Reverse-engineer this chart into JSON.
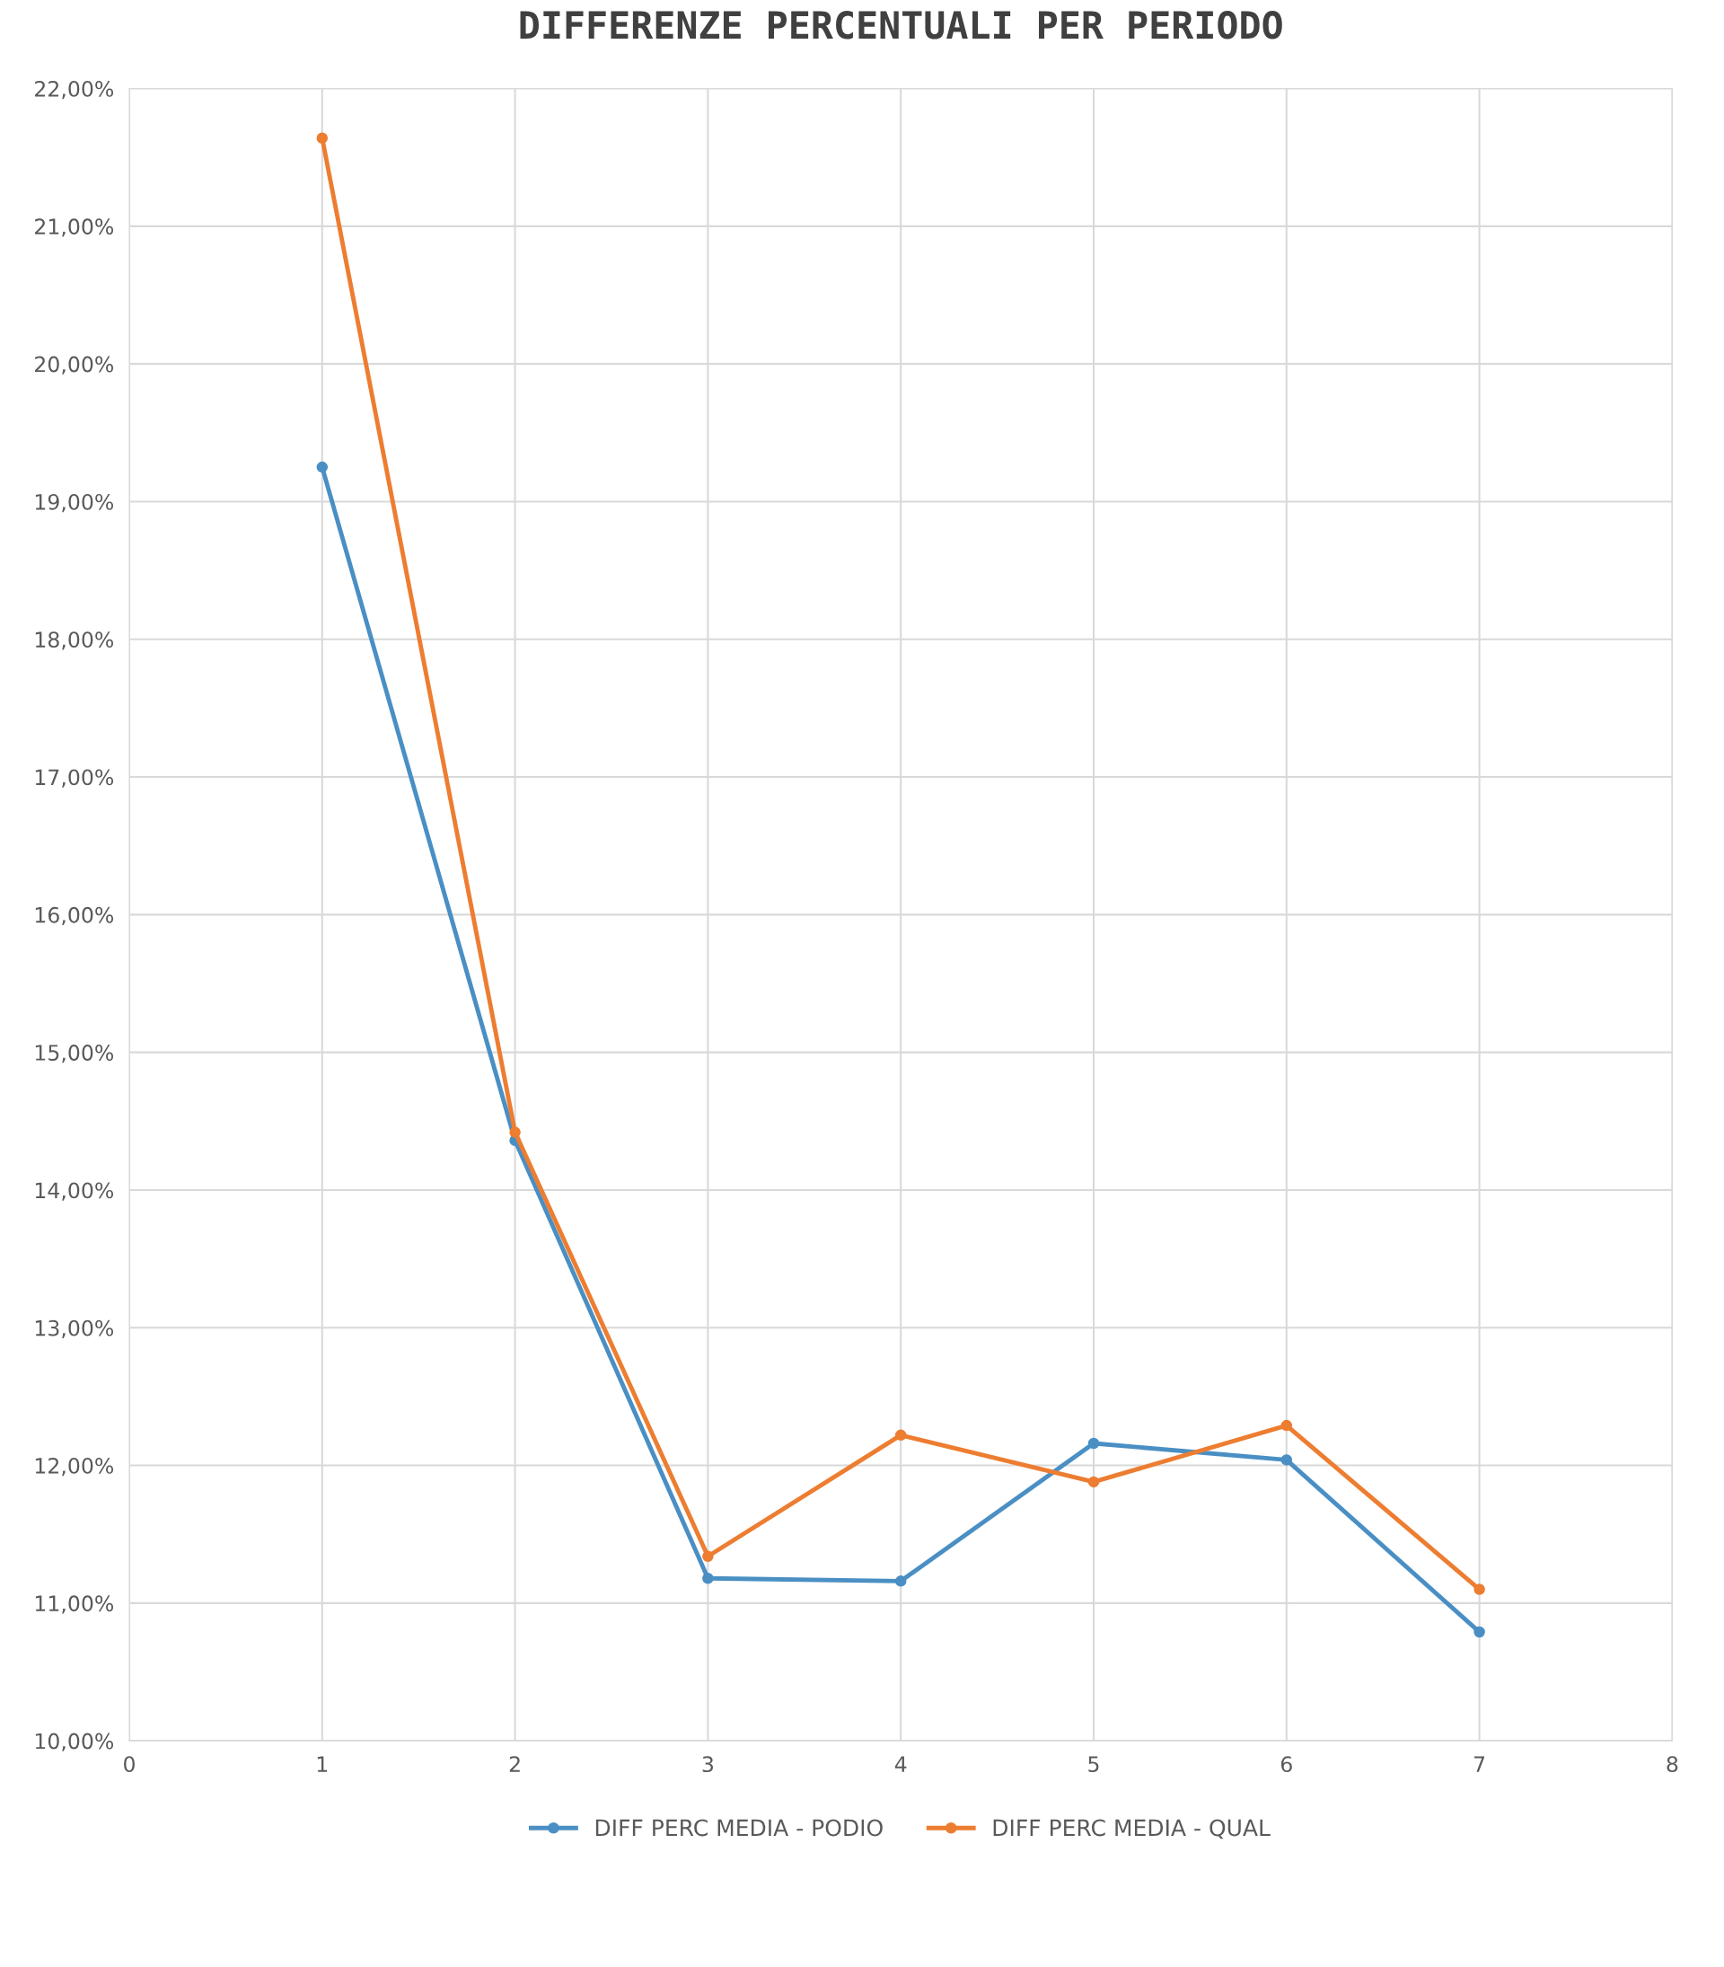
{
  "chart_data": {
    "type": "line",
    "title": "DIFFERENZE PERCENTUALI PER PERIODO",
    "x": [
      1,
      2,
      3,
      4,
      5,
      6,
      7
    ],
    "series": [
      {
        "name": "DIFF PERC MEDIA - PODIO",
        "color": "#4a8fc4",
        "values": [
          19.25,
          14.36,
          11.18,
          11.16,
          12.16,
          12.04,
          10.79
        ]
      },
      {
        "name": "DIFF PERC MEDIA - QUAL",
        "color": "#ed7d31",
        "values": [
          21.64,
          14.42,
          11.34,
          12.22,
          11.88,
          12.29,
          11.1
        ]
      }
    ],
    "xlim": [
      0,
      8
    ],
    "xticks": [
      0,
      1,
      2,
      3,
      4,
      5,
      6,
      7,
      8
    ],
    "ylim": [
      10,
      22
    ],
    "yticks": [
      {
        "value": 10,
        "label": "10,00%"
      },
      {
        "value": 11,
        "label": "11,00%"
      },
      {
        "value": 12,
        "label": "12,00%"
      },
      {
        "value": 13,
        "label": "13,00%"
      },
      {
        "value": 14,
        "label": "14,00%"
      },
      {
        "value": 15,
        "label": "15,00%"
      },
      {
        "value": 16,
        "label": "16,00%"
      },
      {
        "value": 17,
        "label": "17,00%"
      },
      {
        "value": 18,
        "label": "18,00%"
      },
      {
        "value": 19,
        "label": "19,00%"
      },
      {
        "value": 20,
        "label": "20,00%"
      },
      {
        "value": 21,
        "label": "21,00%"
      },
      {
        "value": 22,
        "label": "22,00%"
      }
    ],
    "grid": true,
    "legend": "bottom",
    "marker": "circle",
    "line_style": "solid"
  }
}
